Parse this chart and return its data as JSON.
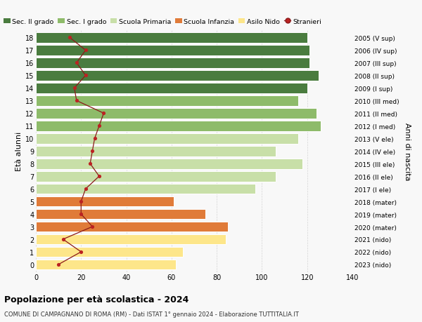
{
  "ages": [
    0,
    1,
    2,
    3,
    4,
    5,
    6,
    7,
    8,
    9,
    10,
    11,
    12,
    13,
    14,
    15,
    16,
    17,
    18
  ],
  "bar_values": [
    62,
    65,
    84,
    85,
    75,
    61,
    97,
    106,
    118,
    106,
    116,
    126,
    124,
    116,
    120,
    125,
    121,
    121,
    120
  ],
  "bar_colors": [
    "#fde68a",
    "#fde68a",
    "#fde68a",
    "#e07b39",
    "#e07b39",
    "#e07b39",
    "#c8dfa8",
    "#c8dfa8",
    "#c8dfa8",
    "#c8dfa8",
    "#c8dfa8",
    "#8ebb6a",
    "#8ebb6a",
    "#8ebb6a",
    "#4a7c3f",
    "#4a7c3f",
    "#4a7c3f",
    "#4a7c3f",
    "#4a7c3f"
  ],
  "stranieri_values": [
    10,
    20,
    12,
    25,
    20,
    20,
    22,
    28,
    24,
    25,
    26,
    28,
    30,
    18,
    17,
    22,
    18,
    22,
    15
  ],
  "right_labels": [
    "2023 (nido)",
    "2022 (nido)",
    "2021 (nido)",
    "2020 (mater)",
    "2019 (mater)",
    "2018 (mater)",
    "2017 (I ele)",
    "2016 (II ele)",
    "2015 (III ele)",
    "2014 (IV ele)",
    "2013 (V ele)",
    "2012 (I med)",
    "2011 (II med)",
    "2010 (III med)",
    "2009 (I sup)",
    "2008 (II sup)",
    "2007 (III sup)",
    "2006 (IV sup)",
    "2005 (V sup)"
  ],
  "legend_labels": [
    "Sec. II grado",
    "Sec. I grado",
    "Scuola Primaria",
    "Scuola Infanzia",
    "Asilo Nido",
    "Stranieri"
  ],
  "legend_colors": [
    "#4a7c3f",
    "#8ebb6a",
    "#c8dfa8",
    "#e07b39",
    "#fde68a",
    "#aa1111"
  ],
  "ylabel_left": "Età alunni",
  "ylabel_right": "Anni di nascita",
  "title": "Popolazione per età scolastica - 2024",
  "subtitle": "COMUNE DI CAMPAGNANO DI ROMA (RM) - Dati ISTAT 1° gennaio 2024 - Elaborazione TUTTITALIA.IT",
  "xlim": [
    0,
    140
  ],
  "bg_color": "#f8f8f8",
  "grid_color": "#cccccc"
}
